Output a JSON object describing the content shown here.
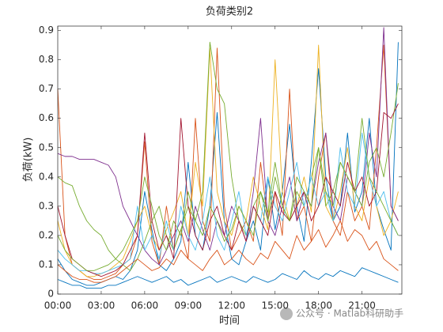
{
  "chart_data": {
    "type": "line",
    "title": "负荷类别2",
    "xlabel": "时间",
    "ylabel": "负荷(kW)",
    "watermark": "公众号 · Matlab科研助手",
    "x": [
      0,
      0.5,
      1,
      1.5,
      2,
      2.5,
      3,
      3.5,
      4,
      4.5,
      5,
      5.5,
      6,
      6.5,
      7,
      7.5,
      8,
      8.5,
      9,
      9.5,
      10,
      10.5,
      11,
      11.5,
      12,
      12.5,
      13,
      13.5,
      14,
      14.5,
      15,
      15.5,
      16,
      16.5,
      17,
      17.5,
      18,
      18.5,
      19,
      19.5,
      20,
      20.5,
      21,
      21.5,
      22,
      22.5,
      23,
      23.5
    ],
    "xlim": [
      0,
      23.75
    ],
    "xticks": [
      {
        "value": 0,
        "label": "00:00"
      },
      {
        "value": 3,
        "label": "03:00"
      },
      {
        "value": 6,
        "label": "06:00"
      },
      {
        "value": 9,
        "label": "09:00"
      },
      {
        "value": 12,
        "label": "12:00"
      },
      {
        "value": 15,
        "label": "15:00"
      },
      {
        "value": 18,
        "label": "18:00"
      },
      {
        "value": 21,
        "label": "21:00"
      }
    ],
    "ylim": [
      0,
      0.915
    ],
    "yticks": [
      0,
      0.1,
      0.2,
      0.3,
      0.4,
      0.5,
      0.6,
      0.7,
      0.8,
      0.9
    ],
    "grid": false,
    "series": [
      {
        "color": "#0072BD",
        "values": [
          0.12,
          0.08,
          0.05,
          0.04,
          0.03,
          0.03,
          0.04,
          0.05,
          0.06,
          0.05,
          0.08,
          0.15,
          0.35,
          0.22,
          0.1,
          0.08,
          0.12,
          0.18,
          0.45,
          0.2,
          0.15,
          0.3,
          0.62,
          0.25,
          0.12,
          0.1,
          0.18,
          0.25,
          0.15,
          0.4,
          0.22,
          0.35,
          0.58,
          0.3,
          0.18,
          0.45,
          0.77,
          0.4,
          0.25,
          0.3,
          0.55,
          0.28,
          0.35,
          0.6,
          0.3,
          0.22,
          0.15,
          0.86
        ]
      },
      {
        "color": "#D95319",
        "values": [
          0.7,
          0.2,
          0.1,
          0.08,
          0.06,
          0.05,
          0.05,
          0.06,
          0.07,
          0.1,
          0.12,
          0.2,
          0.52,
          0.18,
          0.1,
          0.3,
          0.15,
          0.22,
          0.12,
          0.6,
          0.25,
          0.18,
          0.84,
          0.3,
          0.15,
          0.2,
          0.25,
          0.18,
          0.45,
          0.25,
          0.35,
          0.2,
          0.7,
          0.25,
          0.3,
          0.18,
          0.4,
          0.55,
          0.25,
          0.2,
          0.35,
          0.25,
          0.3,
          0.22,
          0.5,
          0.85,
          0.3,
          0.25
        ]
      },
      {
        "color": "#EDB120",
        "values": [
          0.25,
          0.15,
          0.1,
          0.08,
          0.06,
          0.06,
          0.07,
          0.08,
          0.1,
          0.12,
          0.18,
          0.25,
          0.3,
          0.2,
          0.15,
          0.22,
          0.28,
          0.35,
          0.2,
          0.45,
          0.3,
          0.84,
          0.35,
          0.25,
          0.2,
          0.3,
          0.25,
          0.4,
          0.3,
          0.22,
          0.8,
          0.35,
          0.25,
          0.3,
          0.4,
          0.28,
          0.85,
          0.3,
          0.25,
          0.35,
          0.5,
          0.3,
          0.25,
          0.4,
          0.3,
          0.2,
          0.25,
          0.35
        ]
      },
      {
        "color": "#7E2F8E",
        "values": [
          0.48,
          0.47,
          0.47,
          0.46,
          0.46,
          0.46,
          0.45,
          0.44,
          0.4,
          0.3,
          0.25,
          0.2,
          0.15,
          0.12,
          0.1,
          0.15,
          0.2,
          0.25,
          0.18,
          0.3,
          0.22,
          0.15,
          0.25,
          0.2,
          0.3,
          0.25,
          0.18,
          0.35,
          0.6,
          0.25,
          0.2,
          0.3,
          0.4,
          0.25,
          0.35,
          0.3,
          0.45,
          0.55,
          0.3,
          0.25,
          0.4,
          0.35,
          0.3,
          0.55,
          0.4,
          0.91,
          0.3,
          0.25
        ]
      },
      {
        "color": "#77AC30",
        "values": [
          0.4,
          0.38,
          0.37,
          0.3,
          0.25,
          0.22,
          0.2,
          0.15,
          0.12,
          0.1,
          0.08,
          0.12,
          0.18,
          0.25,
          0.3,
          0.2,
          0.15,
          0.22,
          0.3,
          0.25,
          0.35,
          0.86,
          0.7,
          0.65,
          0.4,
          0.25,
          0.2,
          0.3,
          0.35,
          0.25,
          0.4,
          0.3,
          0.25,
          0.35,
          0.3,
          0.4,
          0.5,
          0.3,
          0.35,
          0.45,
          0.4,
          0.35,
          0.3,
          0.45,
          0.5,
          0.4,
          0.55,
          0.72
        ]
      },
      {
        "color": "#4DBEEE",
        "values": [
          0.15,
          0.12,
          0.1,
          0.08,
          0.08,
          0.07,
          0.07,
          0.08,
          0.09,
          0.1,
          0.12,
          0.3,
          0.15,
          0.2,
          0.12,
          0.25,
          0.15,
          0.3,
          0.2,
          0.15,
          0.25,
          0.4,
          0.2,
          0.15,
          0.25,
          0.35,
          0.2,
          0.3,
          0.25,
          0.4,
          0.3,
          0.25,
          0.35,
          0.45,
          0.3,
          0.4,
          0.3,
          0.35,
          0.25,
          0.5,
          0.35,
          0.3,
          0.55,
          0.4,
          0.3,
          0.35,
          0.25,
          0.2
        ]
      },
      {
        "color": "#A2142F",
        "values": [
          0.3,
          0.2,
          0.12,
          0.1,
          0.08,
          0.07,
          0.06,
          0.07,
          0.08,
          0.1,
          0.15,
          0.2,
          0.55,
          0.25,
          0.15,
          0.2,
          0.12,
          0.6,
          0.3,
          0.2,
          0.15,
          0.25,
          0.3,
          0.2,
          0.15,
          0.25,
          0.18,
          0.3,
          0.25,
          0.2,
          0.35,
          0.28,
          0.25,
          0.3,
          0.35,
          0.25,
          0.3,
          0.4,
          0.35,
          0.3,
          0.45,
          0.35,
          0.4,
          0.3,
          0.35,
          0.62,
          0.6,
          0.65
        ]
      },
      {
        "color": "#0072BD",
        "values": [
          0.05,
          0.04,
          0.03,
          0.03,
          0.02,
          0.02,
          0.02,
          0.03,
          0.03,
          0.04,
          0.05,
          0.06,
          0.05,
          0.04,
          0.05,
          0.06,
          0.04,
          0.05,
          0.03,
          0.04,
          0.05,
          0.06,
          0.04,
          0.05,
          0.06,
          0.05,
          0.04,
          0.06,
          0.05,
          0.04,
          0.05,
          0.07,
          0.06,
          0.05,
          0.08,
          0.06,
          0.05,
          0.07,
          0.06,
          0.08,
          0.07,
          0.06,
          0.09,
          0.08,
          0.07,
          0.06,
          0.05,
          0.04
        ]
      },
      {
        "color": "#D95319",
        "values": [
          0.1,
          0.08,
          0.06,
          0.05,
          0.05,
          0.04,
          0.04,
          0.05,
          0.06,
          0.08,
          0.1,
          0.12,
          0.1,
          0.08,
          0.09,
          0.12,
          0.1,
          0.15,
          0.12,
          0.1,
          0.08,
          0.12,
          0.15,
          0.1,
          0.12,
          0.15,
          0.12,
          0.1,
          0.14,
          0.12,
          0.18,
          0.15,
          0.12,
          0.2,
          0.15,
          0.18,
          0.22,
          0.16,
          0.2,
          0.25,
          0.18,
          0.22,
          0.2,
          0.15,
          0.18,
          0.12,
          0.1,
          0.08
        ]
      },
      {
        "color": "#77AC30",
        "values": [
          0.2,
          0.15,
          0.12,
          0.1,
          0.08,
          0.08,
          0.09,
          0.1,
          0.12,
          0.15,
          0.2,
          0.25,
          0.4,
          0.3,
          0.2,
          0.15,
          0.25,
          0.2,
          0.35,
          0.25,
          0.2,
          0.3,
          0.25,
          0.18,
          0.22,
          0.3,
          0.25,
          0.2,
          0.35,
          0.28,
          0.45,
          0.3,
          0.25,
          0.4,
          0.35,
          0.3,
          0.5,
          0.35,
          0.3,
          0.45,
          0.4,
          0.35,
          0.6,
          0.4,
          0.35,
          0.3,
          0.25,
          0.2
        ]
      }
    ]
  }
}
